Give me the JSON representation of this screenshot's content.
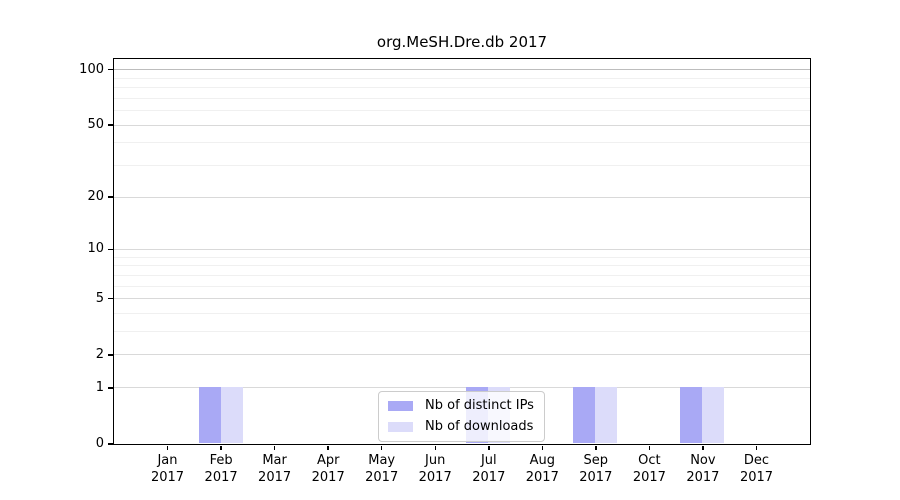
{
  "chart_data": {
    "type": "bar",
    "title": "org.MeSH.Dre.db 2017",
    "categories": [
      "Jan",
      "Feb",
      "Mar",
      "Apr",
      "May",
      "Jun",
      "Jul",
      "Aug",
      "Sep",
      "Oct",
      "Nov",
      "Dec"
    ],
    "category_year": "2017",
    "series": [
      {
        "name": "Nb of distinct IPs",
        "color": "#a9a9f5",
        "values": [
          0,
          1,
          0,
          0,
          0,
          0,
          1,
          0,
          1,
          0,
          1,
          0
        ]
      },
      {
        "name": "Nb of downloads",
        "color": "#dcdcfa",
        "values": [
          0,
          1,
          0,
          0,
          0,
          0,
          1,
          0,
          1,
          0,
          1,
          0
        ]
      }
    ],
    "yscale": "log1p",
    "ylim": [
      0,
      114
    ],
    "y_tick_values": [
      0,
      1,
      2,
      5,
      10,
      20,
      50,
      100
    ],
    "y_tick_labels": [
      "0",
      "1",
      "2",
      "5",
      "10",
      "20",
      "50",
      "100"
    ],
    "y_minor_gridlines": [
      3,
      4,
      6,
      7,
      8,
      9,
      30,
      40,
      60,
      70,
      80,
      90
    ],
    "grid": "horizontal",
    "legend_position": "bottom-center",
    "colors": {
      "axis": "#000000",
      "major_grid": "#d9d9d9",
      "top_grid": "#bdbdbd",
      "minor_grid": "#f0f0f0",
      "legend_border": "#cccccc"
    }
  }
}
